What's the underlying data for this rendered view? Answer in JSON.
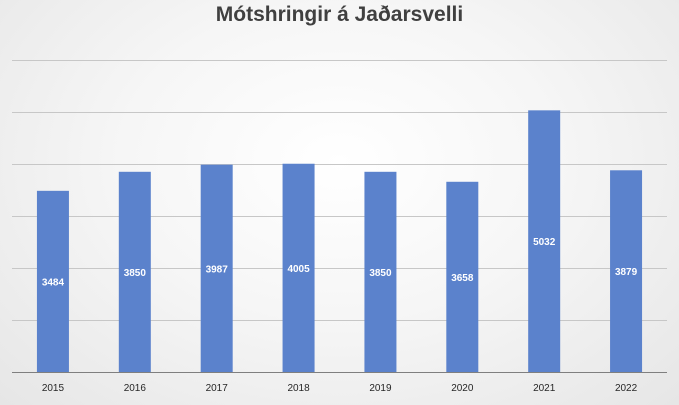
{
  "chart_data": {
    "type": "bar",
    "title": "Mótshringir á Jaðarsvelli",
    "categories": [
      "2015",
      "2016",
      "2017",
      "2018",
      "2019",
      "2020",
      "2021",
      "2022"
    ],
    "values": [
      3484,
      3850,
      3987,
      4005,
      3850,
      3658,
      5032,
      3879
    ],
    "ylim": [
      0,
      6000
    ],
    "y_gridline_step": 1000,
    "y_tick_labels_visible": false,
    "grid": true,
    "legend": "none",
    "data_labels": true,
    "colors": {
      "bar": "#5b82cc",
      "data_label": "#ffffff",
      "axis_label": "#262626",
      "gridline": "#c7c7c7",
      "axis_line": "#7f7f7f",
      "title": "#404040"
    }
  }
}
